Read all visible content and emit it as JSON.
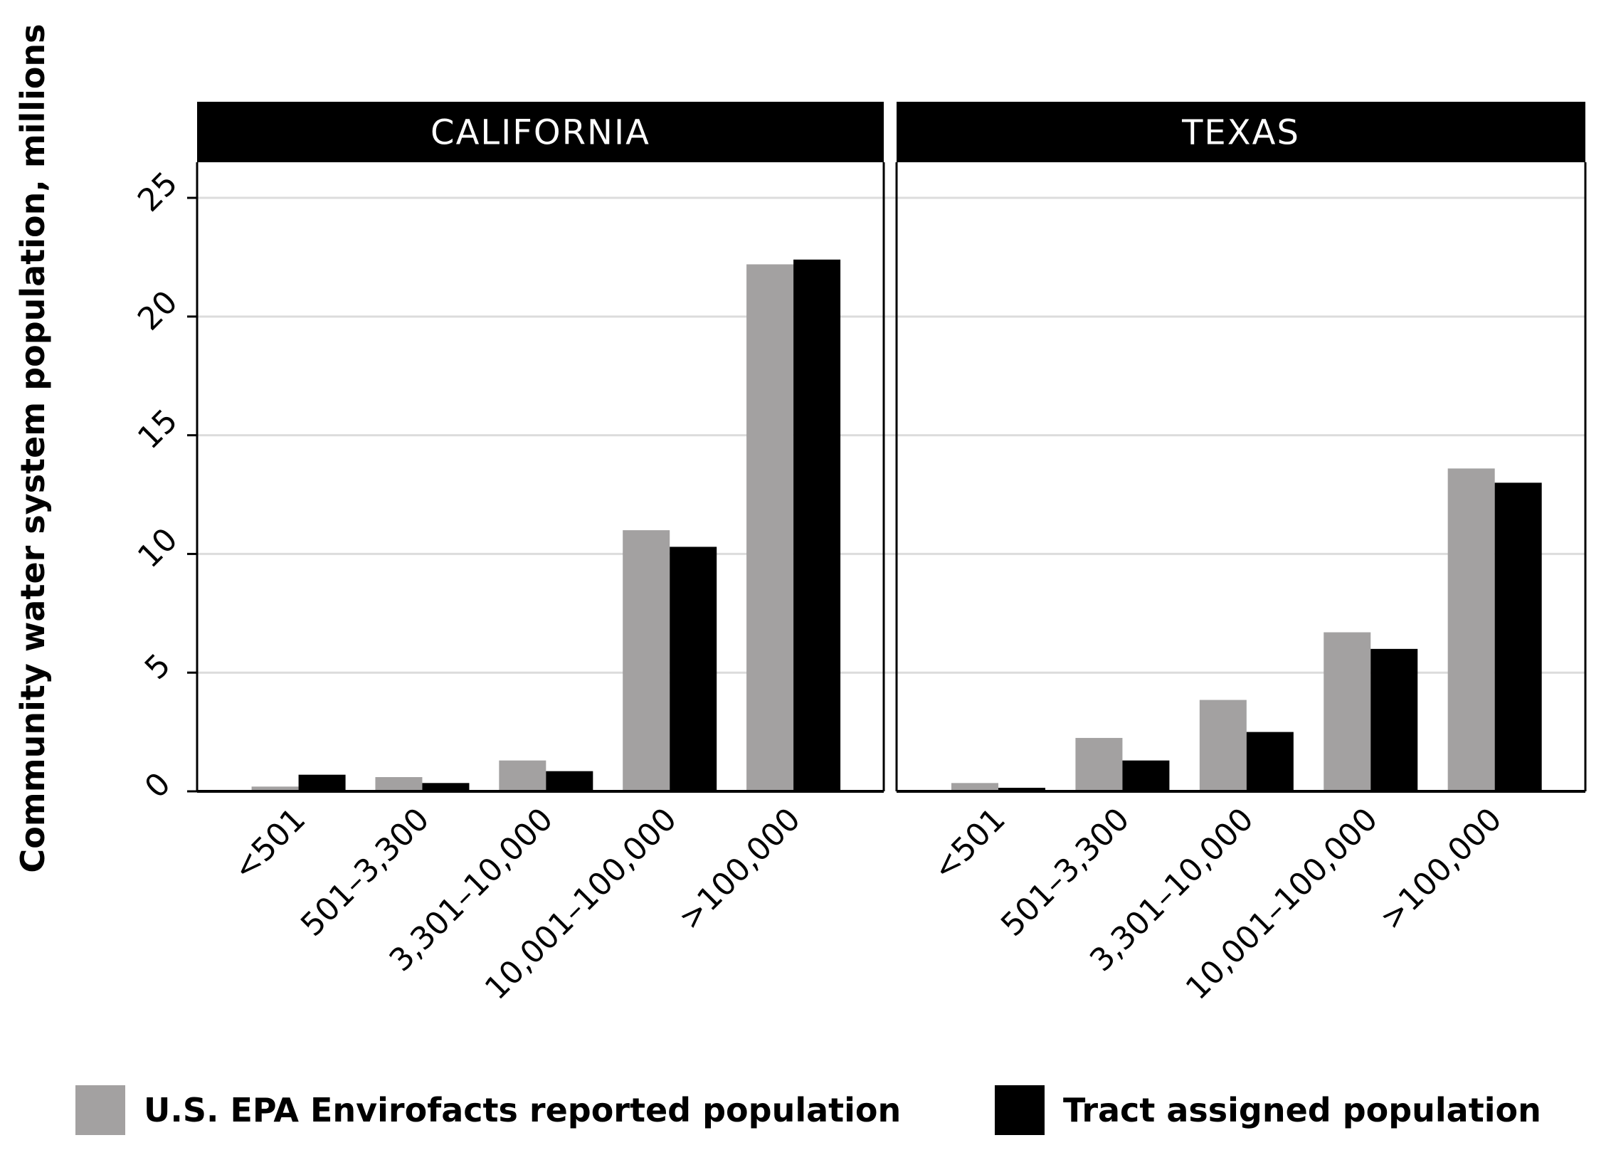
{
  "chart_data": {
    "type": "bar",
    "ylabel": "Community water system population, millions",
    "ylim": [
      0,
      26.5
    ],
    "yticks": [
      0,
      5,
      10,
      15,
      20,
      25
    ],
    "grid": true,
    "legend_position": "bottom",
    "categories": [
      "<501",
      "501–3,300",
      "3,301–10,000",
      "10,001–100,000",
      ">100,000"
    ],
    "series": [
      {
        "name": "U.S. EPA Envirofacts reported population",
        "color": "#a3a1a1"
      },
      {
        "name": "Tract assigned population",
        "color": "#000000"
      }
    ],
    "panels": [
      {
        "title": "CALIFORNIA",
        "values": [
          [
            0.2,
            0.6,
            1.3,
            11.0,
            22.2
          ],
          [
            0.7,
            0.35,
            0.85,
            10.3,
            22.4
          ]
        ]
      },
      {
        "title": "TEXAS",
        "values": [
          [
            0.35,
            2.25,
            3.85,
            6.7,
            13.6
          ],
          [
            0.15,
            1.3,
            2.5,
            6.0,
            13.0
          ]
        ]
      }
    ]
  }
}
